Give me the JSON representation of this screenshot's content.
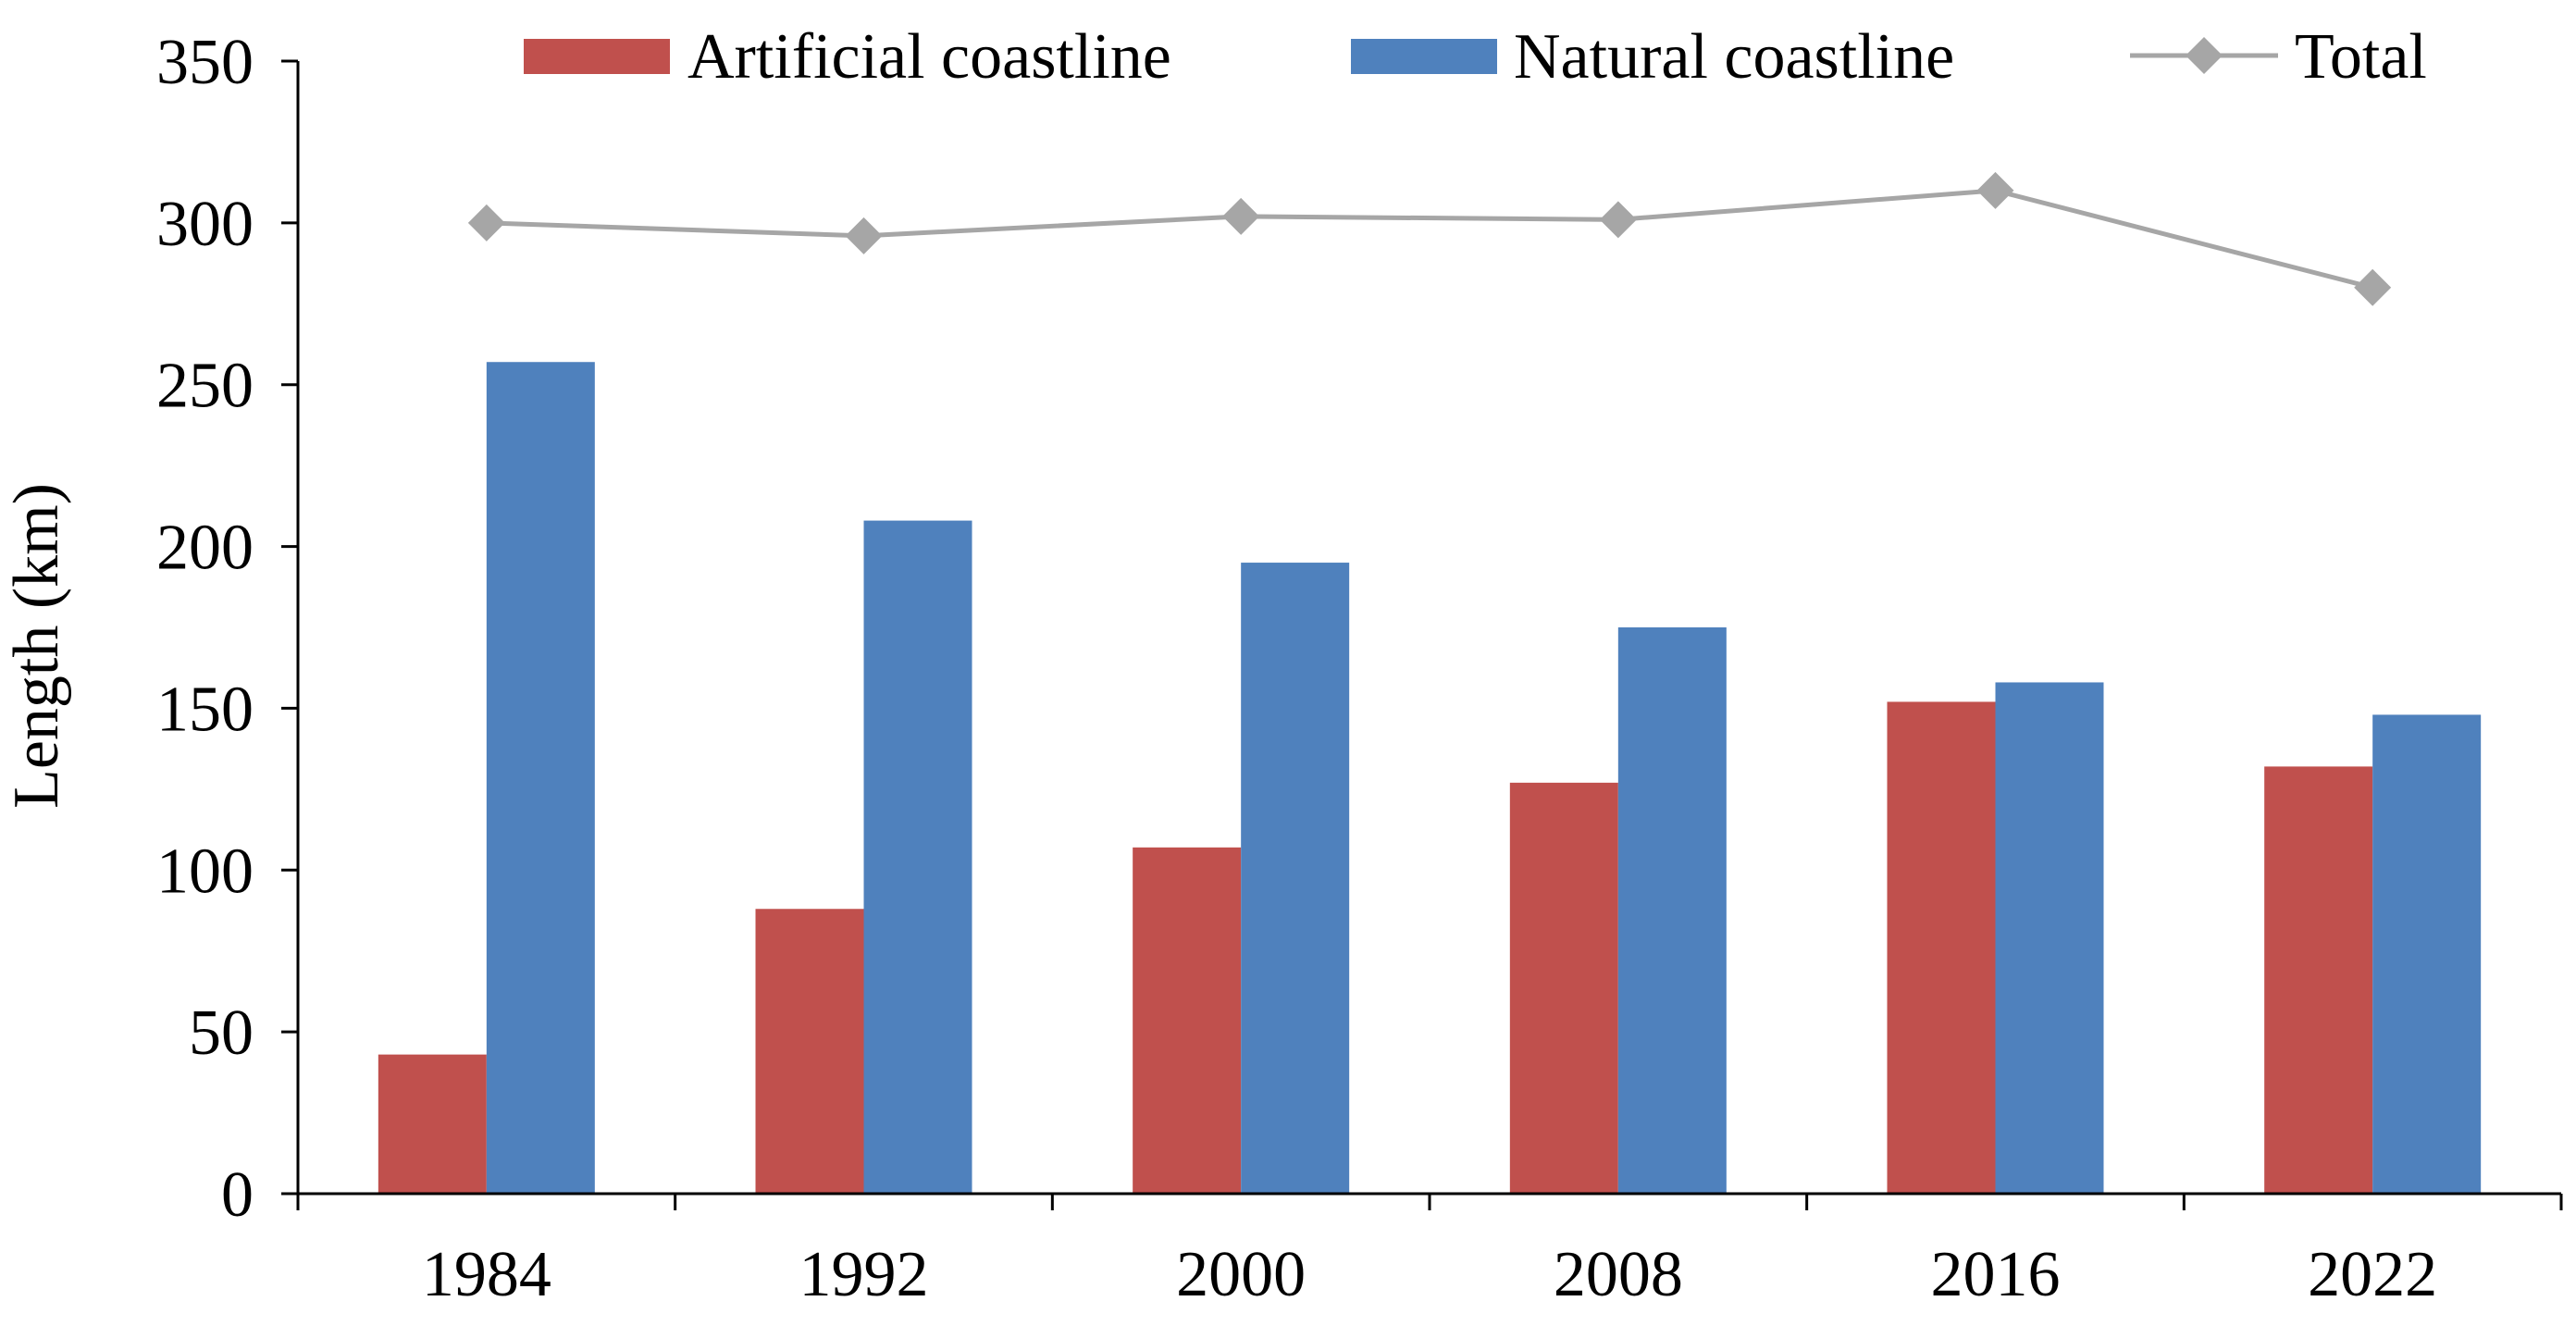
{
  "chart_data": {
    "type": "bar",
    "title": "",
    "xlabel": "",
    "ylabel": "Length (km)",
    "categories": [
      "1984",
      "1992",
      "2000",
      "2008",
      "2016",
      "2022"
    ],
    "ylim": [
      0,
      350
    ],
    "yticks": [
      "0",
      "50",
      "100",
      "150",
      "200",
      "250",
      "300",
      "350"
    ],
    "grid": false,
    "legend_position": "top",
    "series": [
      {
        "name": "Artificial coastline",
        "type": "bar",
        "color": "#c0504d",
        "values": [
          43,
          88,
          107,
          127,
          152,
          132
        ]
      },
      {
        "name": "Natural coastline",
        "type": "bar",
        "color": "#4f81bd",
        "values": [
          257,
          208,
          195,
          175,
          158,
          148
        ]
      },
      {
        "name": "Total",
        "type": "line",
        "marker": "diamond",
        "color": "#a6a6a6",
        "values": [
          300,
          296,
          302,
          301,
          310,
          280
        ]
      }
    ]
  }
}
